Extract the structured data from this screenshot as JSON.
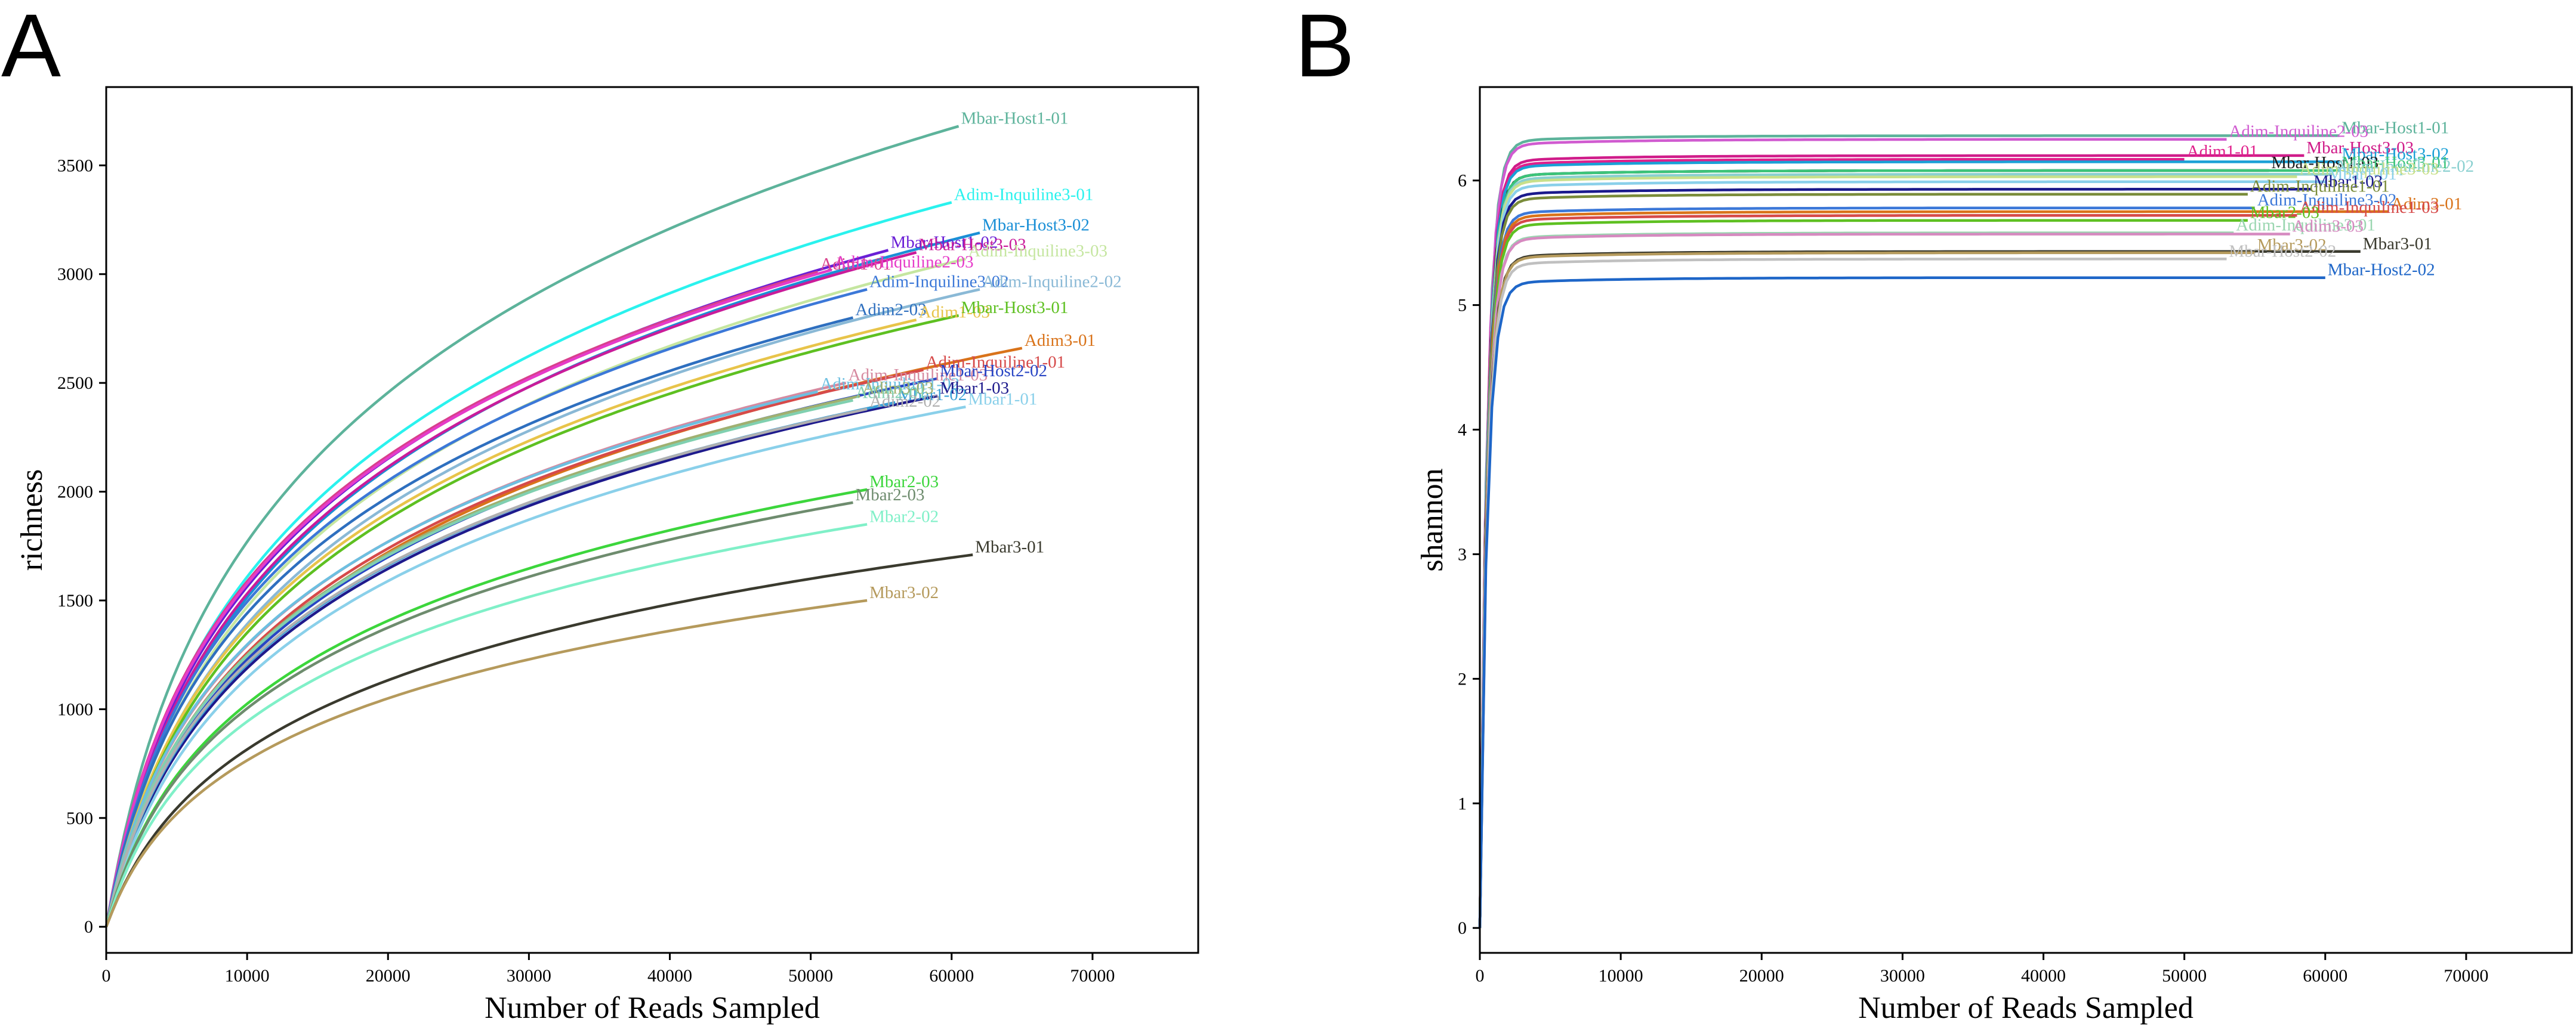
{
  "chart_data": [
    {
      "panel": "A",
      "type": "line",
      "title": "",
      "xlabel": "Number of Reads Sampled",
      "ylabel": "richness",
      "xlim": [
        0,
        77500
      ],
      "ylim": [
        -120,
        3860
      ],
      "xticks": [
        0,
        10000,
        20000,
        30000,
        40000,
        50000,
        60000,
        70000
      ],
      "yticks": [
        0,
        500,
        1000,
        1500,
        2000,
        2500,
        3000,
        3500
      ],
      "series": [
        {
          "name": "Mbar-Host1-01",
          "color": "#5db39b",
          "end_x": 60500,
          "end_y": 3680,
          "shape": 1.8
        },
        {
          "name": "Adim-Inquiline3-01",
          "color": "#2af2ee",
          "end_x": 60000,
          "end_y": 3330,
          "shape": 1.8
        },
        {
          "name": "Mbar-Host3-02",
          "color": "#1a8fd6",
          "end_x": 62000,
          "end_y": 3190,
          "shape": 1.8
        },
        {
          "name": "Mbar-Host1-02",
          "color": "#6a1fd6",
          "end_x": 55500,
          "end_y": 3110,
          "shape": 1.8
        },
        {
          "name": "Mbar-Host3-03",
          "color": "#c91c9a",
          "end_x": 57500,
          "end_y": 3100,
          "shape": 1.8
        },
        {
          "name": "Adim1-01",
          "color": "#d8408c",
          "end_x": 50500,
          "end_y": 3010,
          "shape": 1.8
        },
        {
          "name": "Adim-Inquiline2-03",
          "color": "#e63bc9",
          "end_x": 51500,
          "end_y": 3020,
          "shape": 1.8
        },
        {
          "name": "Adim-Inquiline3-03",
          "color": "#c5e6a0",
          "end_x": 61000,
          "end_y": 3070,
          "shape": 1.8
        },
        {
          "name": "Adim-Inquiline3-02",
          "color": "#3c78d8",
          "end_x": 54000,
          "end_y": 2930,
          "shape": 1.8
        },
        {
          "name": "Adim-Inquiline2-02",
          "color": "#8ab9d6",
          "end_x": 62000,
          "end_y": 2930,
          "shape": 1.8
        },
        {
          "name": "Adim2-03",
          "color": "#2e6fbf",
          "end_x": 53000,
          "end_y": 2800,
          "shape": 1.8
        },
        {
          "name": "Adim1-03",
          "color": "#e8c44a",
          "end_x": 57500,
          "end_y": 2790,
          "shape": 1.8
        },
        {
          "name": "Mbar-Host3-01",
          "color": "#5ec021",
          "end_x": 60500,
          "end_y": 2810,
          "shape": 1.8
        },
        {
          "name": "Adim3-01",
          "color": "#d9731a",
          "end_x": 65000,
          "end_y": 2660,
          "shape": 1.8
        },
        {
          "name": "Adim-Inquiline1-01",
          "color": "#d64a4a",
          "end_x": 58000,
          "end_y": 2560,
          "shape": 1.8
        },
        {
          "name": "Adim-Inquiline1-03",
          "color": "#d68aa0",
          "end_x": 52500,
          "end_y": 2500,
          "shape": 1.8
        },
        {
          "name": "Adim-Inquiline1-02",
          "color": "#6dbfe0",
          "end_x": 50500,
          "end_y": 2460,
          "shape": 1.8
        },
        {
          "name": "Mbar-Host2-02",
          "color": "#2845c4",
          "end_x": 59000,
          "end_y": 2520,
          "shape": 1.8
        },
        {
          "name": "Mbar1-03",
          "color": "#1e1a8c",
          "end_x": 59000,
          "end_y": 2440,
          "shape": 1.8
        },
        {
          "name": "Mbar1-02",
          "color": "#3aa0d6",
          "end_x": 56000,
          "end_y": 2410,
          "shape": 1.8
        },
        {
          "name": "Mbar1-01",
          "color": "#8ad0ea",
          "end_x": 61000,
          "end_y": 2390,
          "shape": 1.8
        },
        {
          "name": "Adim3-03",
          "color": "#a0b070",
          "end_x": 53500,
          "end_y": 2440,
          "shape": 1.8
        },
        {
          "name": "Adim2-01",
          "color": "#80d0b0",
          "end_x": 53000,
          "end_y": 2420,
          "shape": 1.8
        },
        {
          "name": "Adim2-02",
          "color": "#b0b0b0",
          "end_x": 54000,
          "end_y": 2380,
          "shape": 1.8
        },
        {
          "name": "Mbar2-03",
          "color": "#3cd63c",
          "end_x": 54000,
          "end_y": 2010,
          "shape": 1.2
        },
        {
          "name": "Mbar2-03",
          "color": "#6e8c6e",
          "end_x": 53000,
          "end_y": 1950,
          "shape": 1.8
        },
        {
          "name": "Mbar2-02",
          "color": "#80f0c8",
          "end_x": 54000,
          "end_y": 1850,
          "shape": 1.8
        },
        {
          "name": "Mbar3-01",
          "color": "#3a3a2e",
          "end_x": 61500,
          "end_y": 1710,
          "shape": 1.8
        },
        {
          "name": "Mbar3-02",
          "color": "#b59a5c",
          "end_x": 54000,
          "end_y": 1500,
          "shape": 1.8
        }
      ]
    },
    {
      "panel": "B",
      "type": "line",
      "title": "",
      "xlabel": "Number of Reads Sampled",
      "ylabel": "shannon",
      "xlim": [
        0,
        77500
      ],
      "ylim": [
        -0.2,
        6.75
      ],
      "xticks": [
        0,
        10000,
        20000,
        30000,
        40000,
        50000,
        60000,
        70000
      ],
      "yticks": [
        0,
        1,
        2,
        3,
        4,
        5,
        6
      ],
      "series": [
        {
          "name": "Mbar-Host1-01",
          "color": "#5db39b",
          "end_x": 61000,
          "end_y": 6.36
        },
        {
          "name": "Adim-Inquiline2-03",
          "color": "#d05bd0",
          "end_x": 53000,
          "end_y": 6.33
        },
        {
          "name": "Mbar-Host3-03",
          "color": "#d01c8a",
          "end_x": 58500,
          "end_y": 6.2
        },
        {
          "name": "Adim1-01",
          "color": "#e0208c",
          "end_x": 50000,
          "end_y": 6.17
        },
        {
          "name": "Mbar-Host3-02",
          "color": "#1aa0d6",
          "end_x": 61000,
          "end_y": 6.15
        },
        {
          "name": "Mbar-Host1-03",
          "color": "#1e1e1e",
          "end_x": 56000,
          "end_y": 6.08
        },
        {
          "name": "Mbar-Host3-01",
          "color": "#3cc47a",
          "end_x": 61000,
          "end_y": 6.08
        },
        {
          "name": "Adim-Inquiline2-02",
          "color": "#8ad0d0",
          "end_x": 60500,
          "end_y": 6.05
        },
        {
          "name": "Adim-Inquiline3-03",
          "color": "#c8e08a",
          "end_x": 58000,
          "end_y": 6.03
        },
        {
          "name": "Mbar1-01",
          "color": "#8ad0ea",
          "end_x": 60000,
          "end_y": 5.99
        },
        {
          "name": "Mbar1-03",
          "color": "#1a1a8c",
          "end_x": 59000,
          "end_y": 5.93
        },
        {
          "name": "Adim-Inquiline1-01",
          "color": "#7a8c3a",
          "end_x": 54500,
          "end_y": 5.89
        },
        {
          "name": "Adim-Inquiline3-02",
          "color": "#3c78d8",
          "end_x": 55000,
          "end_y": 5.78
        },
        {
          "name": "Adim3-01",
          "color": "#d9731a",
          "end_x": 64500,
          "end_y": 5.75
        },
        {
          "name": "Adim-Inquiline1-03",
          "color": "#d64a4a",
          "end_x": 58000,
          "end_y": 5.72
        },
        {
          "name": "Mbar2-03",
          "color": "#5ec021",
          "end_x": 54500,
          "end_y": 5.68
        },
        {
          "name": "Adim-Inquiline3-01",
          "color": "#9ad6b0",
          "end_x": 53500,
          "end_y": 5.58
        },
        {
          "name": "Adim3-03",
          "color": "#d68ac0",
          "end_x": 57500,
          "end_y": 5.57
        },
        {
          "name": "Mbar3-01",
          "color": "#3a3a2e",
          "end_x": 62500,
          "end_y": 5.43
        },
        {
          "name": "Mbar3-02",
          "color": "#b59a5c",
          "end_x": 55000,
          "end_y": 5.42
        },
        {
          "name": "Mbar-Host2-02",
          "color": "#c0c0c0",
          "end_x": 53000,
          "end_y": 5.37
        },
        {
          "name": "Mbar-Host2-02",
          "color": "#1e66c8",
          "end_x": 60000,
          "end_y": 5.22
        }
      ]
    }
  ],
  "panels": {
    "a": {
      "letter": "A"
    },
    "b": {
      "letter": "B"
    }
  }
}
